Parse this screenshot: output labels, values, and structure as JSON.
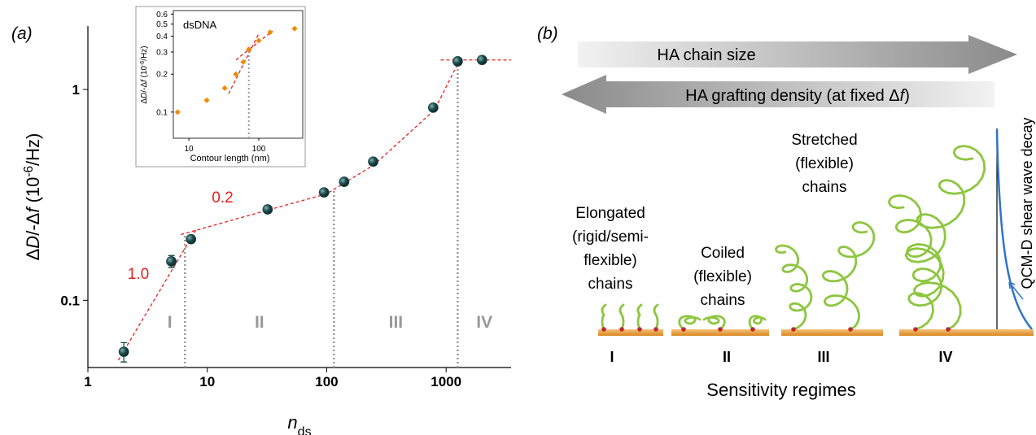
{
  "panel_label": "(a)",
  "chart_data": [
    {
      "type": "scatter",
      "log_x": true,
      "log_y": true,
      "x_label": [
        "n",
        "ds"
      ],
      "y_label": [
        "Δ",
        "D",
        "/-Δ",
        "f",
        " (10",
        "-6",
        "/Hz)"
      ],
      "xlim": [
        1,
        3500
      ],
      "ylim": [
        0.048,
        2.0
      ],
      "xticks": [
        1,
        10,
        100,
        1000
      ],
      "yticks": [
        0.1,
        1
      ],
      "marker": "circle",
      "series": [
        {
          "color": "#1d4a4c",
          "x": [
            2,
            5,
            7.3,
            32,
            95,
            140,
            245,
            780,
            1250,
            2000
          ],
          "values": [
            0.057,
            0.153,
            0.195,
            0.27,
            0.325,
            0.365,
            0.455,
            0.82,
            1.36,
            1.38
          ],
          "errors": [
            0.006,
            0.01,
            null,
            null,
            null,
            null,
            null,
            null,
            null,
            null
          ]
        }
      ],
      "fit_color": "#e8201e",
      "fit_lines": [
        {
          "x": [
            1.8,
            8
          ],
          "values": [
            0.052,
            0.215
          ]
        },
        {
          "x": [
            6,
            30,
            100,
            250,
            800,
            1300
          ],
          "values": [
            0.205,
            0.265,
            0.32,
            0.44,
            0.8,
            1.38
          ]
        },
        {
          "x": [
            900,
            3500
          ],
          "values": [
            1.38,
            1.38
          ]
        }
      ],
      "slope_labels": [
        "1.0",
        "0.2"
      ],
      "boundaries": [
        6.5,
        115,
        1250
      ],
      "regime_labels": [
        "I",
        "II",
        "III",
        "IV"
      ]
    },
    {
      "type": "scatter",
      "log_x": true,
      "log_y": true,
      "title": "dsDNA",
      "x_label": [
        "Contour length (nm)"
      ],
      "y_label": [
        "Δ",
        "D",
        "/-Δ",
        "f",
        " (10",
        "-6",
        "/Hz)"
      ],
      "xlim": [
        6,
        425
      ],
      "ylim": [
        0.062,
        0.64
      ],
      "xticks": [
        10,
        100
      ],
      "yticks": [
        0.1,
        0.2,
        0.3,
        0.4,
        0.5,
        0.6
      ],
      "marker": "diamond",
      "series": [
        {
          "color": "#f08a00",
          "x": [
            6.9,
            18,
            32.6,
            47,
            60,
            72,
            100,
            145,
            325
          ],
          "values": [
            0.1,
            0.124,
            0.155,
            0.2,
            0.25,
            0.315,
            0.37,
            0.43,
            0.46
          ]
        }
      ],
      "fit_color": "#e8201e",
      "fit_lines": [
        {
          "x": [
            37,
            100
          ],
          "values": [
            0.14,
            0.42
          ]
        },
        {
          "x": [
            47,
            157
          ],
          "values": [
            0.26,
            0.44
          ]
        }
      ],
      "boundaries": [
        72
      ]
    }
  ],
  "diagram": {
    "panel_label": "(b)",
    "arrow_right": "HA chain size",
    "arrow_left": [
      "HA grafting density (at fixed Δ",
      "f",
      ")"
    ],
    "regimes": [
      {
        "label": "I",
        "caption": [
          "Elongated",
          "(rigid/semi-",
          "flexible)",
          "chains"
        ]
      },
      {
        "label": "II",
        "caption": [
          "Coiled",
          "(flexible)",
          "chains"
        ]
      },
      {
        "label": "III",
        "caption": [
          "Stretched",
          "(flexible)",
          "chains"
        ]
      },
      {
        "label": "IV"
      }
    ],
    "decay_label": "QCM-D shear wave decay",
    "footer": "Sensitivity regimes"
  }
}
